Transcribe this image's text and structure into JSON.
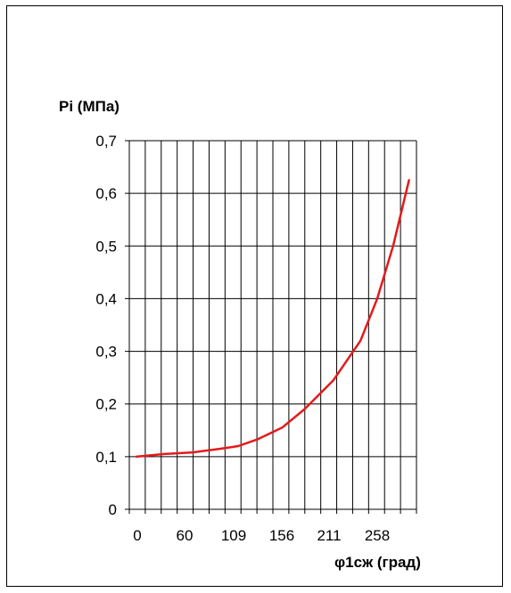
{
  "chart_data": {
    "type": "line",
    "ylabel": "Pi  (МПа)",
    "xlabel": "φ1сж  (град)",
    "ylim": [
      0,
      0.7
    ],
    "yticks": [
      "0",
      "0,1",
      "0,2",
      "0,3",
      "0,4",
      "0,5",
      "0,6",
      "0,7"
    ],
    "xticks": [
      "0",
      "60",
      "109",
      "156",
      "211",
      "258"
    ],
    "grid": true,
    "series": [
      {
        "color": "#e31a1c",
        "x": [
          0,
          30,
          60,
          90,
          109,
          130,
          156,
          180,
          211,
          240,
          258,
          275,
          292
        ],
        "y": [
          0.1,
          0.105,
          0.108,
          0.115,
          0.12,
          0.133,
          0.155,
          0.19,
          0.245,
          0.32,
          0.4,
          0.5,
          0.625
        ]
      }
    ]
  }
}
